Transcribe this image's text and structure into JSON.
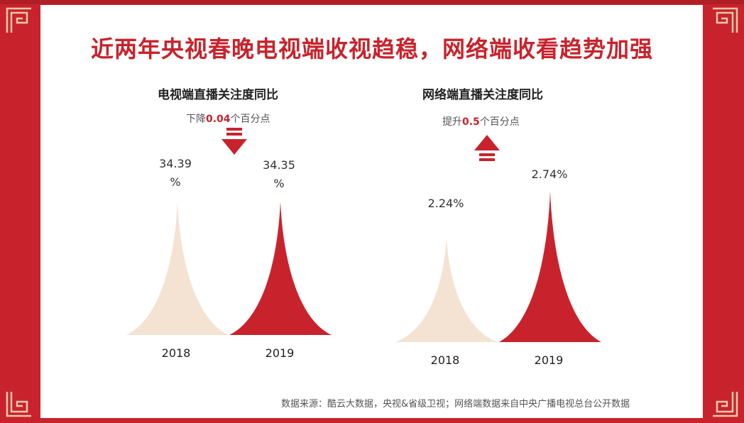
{
  "title": {
    "part1": "近两年央视",
    "part2": "春晚电视端收视趋稳，网络端收看趋势加强"
  },
  "colors": {
    "frame": "#c8232c",
    "peak_2018": "#f4e3d3",
    "peak_2019": "#c8232c",
    "accent": "#c8232c"
  },
  "left_panel": {
    "title": "电视端直播关注度同比",
    "change": {
      "prefix": "下降",
      "value": "0.04",
      "suffix": "个百分点"
    },
    "arrow": "down-arrow-icon"
  },
  "right_panel": {
    "title": "网络端直播关注度同比",
    "change": {
      "prefix": "提升",
      "value": "0.5",
      "suffix": "个百分点"
    },
    "arrow": "up-arrow-icon"
  },
  "source": "数据来源：酷云大数据，央视&省级卫视；网络端数据来自中央广播电视总台公开数据",
  "chart_data": [
    {
      "type": "bar",
      "title": "电视端直播关注度同比",
      "categories": [
        "2018",
        "2019"
      ],
      "values": [
        34.39,
        34.35
      ],
      "labels": [
        "34.39%",
        "34.35%"
      ],
      "colors": [
        "#f4e3d3",
        "#c8232c"
      ],
      "ylim": [
        0,
        34.4
      ]
    },
    {
      "type": "bar",
      "title": "网络端直播关注度同比",
      "categories": [
        "2018",
        "2019"
      ],
      "values": [
        2.24,
        2.74
      ],
      "labels": [
        "2.24%",
        "2.74%"
      ],
      "colors": [
        "#f4e3d3",
        "#c8232c"
      ],
      "ylim": [
        0,
        2.74
      ]
    }
  ]
}
